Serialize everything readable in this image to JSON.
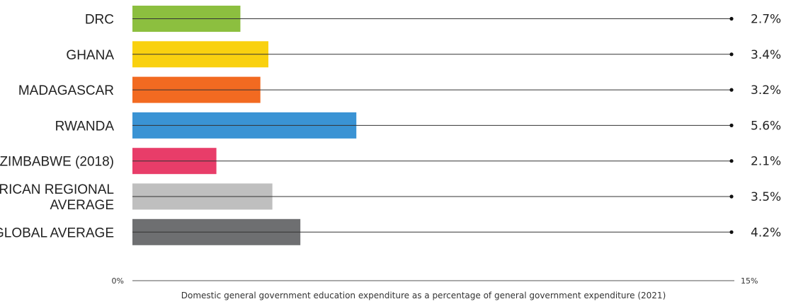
{
  "chart_data": {
    "type": "bar",
    "orientation": "horizontal",
    "categories": [
      "DRC",
      "GHANA",
      "MADAGASCAR",
      "RWANDA",
      "ZIMBABWE (2018)",
      "AFRICAN REGIONAL AVERAGE",
      "GLOBAL AVERAGE"
    ],
    "category_lines": [
      [
        "DRC"
      ],
      [
        "GHANA"
      ],
      [
        "MADAGASCAR"
      ],
      [
        "RWANDA"
      ],
      [
        "ZIMBABWE (2018)"
      ],
      [
        "AFRICAN REGIONAL",
        "AVERAGE"
      ],
      [
        "GLOBAL AVERAGE"
      ]
    ],
    "values": [
      2.7,
      3.4,
      3.2,
      5.6,
      2.1,
      3.5,
      4.2
    ],
    "value_labels": [
      "2.7%",
      "3.4%",
      "3.2%",
      "5.6%",
      "2.1%",
      "3.5%",
      "4.2%"
    ],
    "colors": [
      "#8cbf3f",
      "#f9d10f",
      "#f26a21",
      "#3a93d4",
      "#e83d69",
      "#bfbfbf",
      "#6e6f71"
    ],
    "xlim": [
      0,
      15
    ],
    "xtick_labels": [
      "0%",
      "15%"
    ],
    "xlabel": "Domestic general government education expenditure as a percentage of general government expenditure (2021)",
    "title": "",
    "grid": false,
    "legend": "none"
  }
}
